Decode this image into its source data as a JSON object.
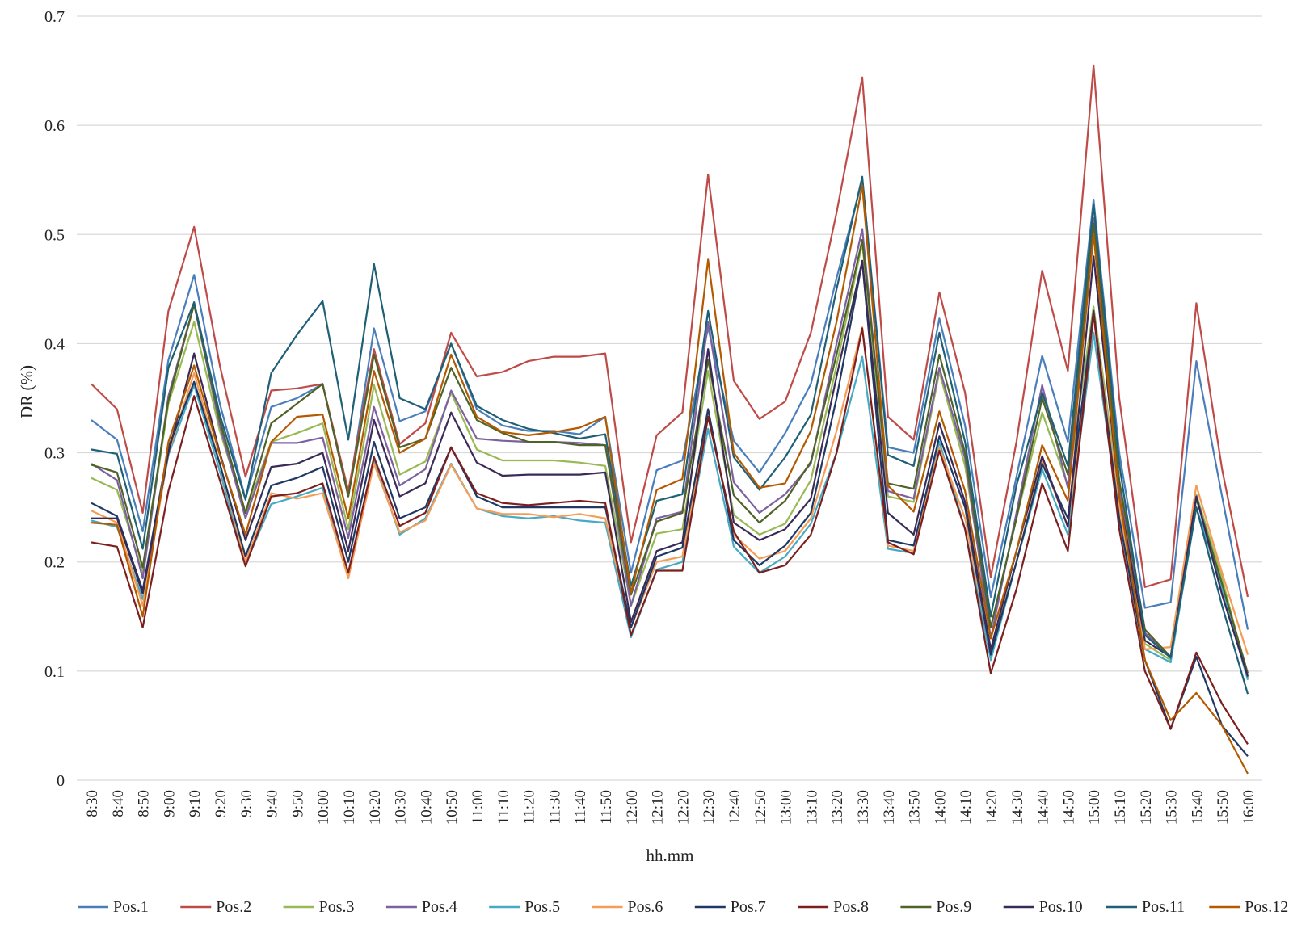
{
  "chart_data": {
    "type": "line",
    "xlabel": "hh.mm",
    "ylabel": "DR (%)",
    "ylim": [
      0,
      0.7
    ],
    "yticks": [
      "0",
      "0.1",
      "0.2",
      "0.3",
      "0.4",
      "0.5",
      "0.6",
      "0.7"
    ],
    "grid": "horizontal",
    "legend_position": "bottom",
    "x": [
      "8:30",
      "8:40",
      "8:50",
      "9:00",
      "9:10",
      "9:20",
      "9:30",
      "9:40",
      "9:50",
      "10:00",
      "10:10",
      "10:20",
      "10:30",
      "10:40",
      "10:50",
      "11:00",
      "11:10",
      "11:20",
      "11:30",
      "11:40",
      "11:50",
      "12:00",
      "12:10",
      "12:20",
      "12:30",
      "12:40",
      "12:50",
      "13:00",
      "13:10",
      "13:20",
      "13:30",
      "13:40",
      "13:50",
      "14:00",
      "14:10",
      "14:20",
      "14:30",
      "14:40",
      "14:50",
      "15:00",
      "15:10",
      "15:20",
      "15:30",
      "15:40",
      "15:50",
      "16:00"
    ],
    "series": [
      {
        "name": "Pos.1",
        "color": "#4a7ebb",
        "values": [
          0.33,
          0.312,
          0.228,
          0.385,
          0.463,
          0.345,
          0.258,
          0.342,
          0.35,
          0.363,
          0.26,
          0.414,
          0.329,
          0.338,
          0.4,
          0.34,
          0.325,
          0.32,
          0.32,
          0.317,
          0.333,
          0.19,
          0.284,
          0.293,
          0.415,
          0.311,
          0.282,
          0.318,
          0.363,
          0.46,
          0.55,
          0.305,
          0.3,
          0.423,
          0.325,
          0.168,
          0.278,
          0.389,
          0.31,
          0.532,
          0.3,
          0.158,
          0.163,
          0.384,
          0.26,
          0.138
        ]
      },
      {
        "name": "Pos.2",
        "color": "#be4b48",
        "values": [
          0.363,
          0.34,
          0.245,
          0.43,
          0.507,
          0.38,
          0.278,
          0.357,
          0.359,
          0.363,
          0.265,
          0.395,
          0.308,
          0.327,
          0.41,
          0.37,
          0.374,
          0.384,
          0.388,
          0.388,
          0.391,
          0.218,
          0.316,
          0.337,
          0.555,
          0.366,
          0.331,
          0.347,
          0.41,
          0.52,
          0.644,
          0.333,
          0.312,
          0.447,
          0.355,
          0.186,
          0.31,
          0.467,
          0.375,
          0.655,
          0.35,
          0.177,
          0.184,
          0.437,
          0.285,
          0.168
        ]
      },
      {
        "name": "Pos.3",
        "color": "#98b954",
        "values": [
          0.277,
          0.266,
          0.19,
          0.345,
          0.42,
          0.32,
          0.245,
          0.31,
          0.318,
          0.327,
          0.23,
          0.362,
          0.28,
          0.292,
          0.355,
          0.303,
          0.293,
          0.293,
          0.293,
          0.291,
          0.288,
          0.16,
          0.226,
          0.23,
          0.375,
          0.243,
          0.225,
          0.235,
          0.275,
          0.38,
          0.492,
          0.26,
          0.255,
          0.374,
          0.288,
          0.14,
          0.24,
          0.337,
          0.27,
          0.434,
          0.26,
          0.125,
          0.11,
          0.262,
          0.185,
          0.095
        ]
      },
      {
        "name": "Pos.4",
        "color": "#7d60a0",
        "values": [
          0.29,
          0.275,
          0.185,
          0.352,
          0.436,
          0.325,
          0.24,
          0.309,
          0.309,
          0.314,
          0.222,
          0.342,
          0.27,
          0.285,
          0.357,
          0.313,
          0.311,
          0.31,
          0.31,
          0.309,
          0.307,
          0.16,
          0.24,
          0.246,
          0.42,
          0.273,
          0.245,
          0.262,
          0.29,
          0.4,
          0.505,
          0.265,
          0.258,
          0.378,
          0.295,
          0.13,
          0.245,
          0.362,
          0.268,
          0.515,
          0.27,
          0.135,
          0.113,
          0.26,
          0.178,
          0.093
        ]
      },
      {
        "name": "Pos.5",
        "color": "#46aac5",
        "values": [
          0.238,
          0.232,
          0.166,
          0.298,
          0.362,
          0.283,
          0.198,
          0.253,
          0.26,
          0.268,
          0.19,
          0.293,
          0.225,
          0.24,
          0.29,
          0.249,
          0.242,
          0.24,
          0.242,
          0.238,
          0.236,
          0.131,
          0.193,
          0.2,
          0.322,
          0.214,
          0.19,
          0.205,
          0.235,
          0.3,
          0.388,
          0.212,
          0.208,
          0.31,
          0.23,
          0.11,
          0.2,
          0.285,
          0.225,
          0.41,
          0.24,
          0.12,
          0.108,
          0.25,
          0.175,
          0.092
        ]
      },
      {
        "name": "Pos.6",
        "color": "#f59d56",
        "values": [
          0.247,
          0.236,
          0.16,
          0.3,
          0.373,
          0.29,
          0.2,
          0.263,
          0.258,
          0.263,
          0.185,
          0.29,
          0.227,
          0.238,
          0.289,
          0.249,
          0.244,
          0.244,
          0.241,
          0.244,
          0.24,
          0.14,
          0.2,
          0.205,
          0.335,
          0.225,
          0.203,
          0.21,
          0.24,
          0.32,
          0.415,
          0.215,
          0.21,
          0.305,
          0.24,
          0.118,
          0.2,
          0.293,
          0.233,
          0.43,
          0.25,
          0.12,
          0.122,
          0.27,
          0.19,
          0.115
        ]
      },
      {
        "name": "Pos.7",
        "color": "#1f3864",
        "values": [
          0.254,
          0.242,
          0.174,
          0.305,
          0.365,
          0.29,
          0.205,
          0.27,
          0.277,
          0.287,
          0.2,
          0.31,
          0.24,
          0.25,
          0.305,
          0.26,
          0.25,
          0.25,
          0.25,
          0.25,
          0.25,
          0.14,
          0.205,
          0.213,
          0.34,
          0.22,
          0.197,
          0.215,
          0.245,
          0.35,
          0.475,
          0.22,
          0.215,
          0.315,
          0.25,
          0.115,
          0.2,
          0.29,
          0.24,
          0.43,
          0.24,
          0.11,
          0.047,
          0.113,
          0.05,
          0.022
        ]
      },
      {
        "name": "Pos.8",
        "color": "#7b1f1f",
        "values": [
          0.218,
          0.214,
          0.14,
          0.265,
          0.352,
          0.275,
          0.196,
          0.26,
          0.263,
          0.272,
          0.19,
          0.296,
          0.233,
          0.245,
          0.305,
          0.263,
          0.254,
          0.252,
          0.254,
          0.256,
          0.254,
          0.133,
          0.192,
          0.192,
          0.333,
          0.228,
          0.19,
          0.197,
          0.225,
          0.3,
          0.414,
          0.218,
          0.207,
          0.302,
          0.23,
          0.098,
          0.175,
          0.272,
          0.21,
          0.427,
          0.23,
          0.1,
          0.047,
          0.117,
          0.07,
          0.033
        ]
      },
      {
        "name": "Pos.9",
        "color": "#4f6228",
        "values": [
          0.289,
          0.282,
          0.195,
          0.348,
          0.436,
          0.33,
          0.245,
          0.327,
          0.345,
          0.363,
          0.26,
          0.39,
          0.305,
          0.313,
          0.378,
          0.33,
          0.318,
          0.31,
          0.31,
          0.307,
          0.307,
          0.17,
          0.237,
          0.245,
          0.385,
          0.261,
          0.236,
          0.256,
          0.292,
          0.39,
          0.495,
          0.272,
          0.267,
          0.39,
          0.3,
          0.14,
          0.24,
          0.35,
          0.28,
          0.51,
          0.275,
          0.138,
          0.113,
          0.258,
          0.18,
          0.098
        ]
      },
      {
        "name": "Pos.10",
        "color": "#3a2a58",
        "values": [
          0.24,
          0.24,
          0.171,
          0.3,
          0.391,
          0.3,
          0.22,
          0.287,
          0.29,
          0.3,
          0.21,
          0.33,
          0.26,
          0.272,
          0.337,
          0.291,
          0.279,
          0.28,
          0.28,
          0.28,
          0.282,
          0.145,
          0.21,
          0.218,
          0.395,
          0.236,
          0.22,
          0.23,
          0.258,
          0.37,
          0.476,
          0.245,
          0.225,
          0.327,
          0.255,
          0.12,
          0.21,
          0.297,
          0.232,
          0.48,
          0.26,
          0.128,
          0.113,
          0.26,
          0.17,
          0.095
        ]
      },
      {
        "name": "Pos.11",
        "color": "#1f6076",
        "values": [
          0.303,
          0.299,
          0.212,
          0.378,
          0.438,
          0.335,
          0.257,
          0.373,
          0.408,
          0.439,
          0.312,
          0.473,
          0.35,
          0.34,
          0.4,
          0.343,
          0.33,
          0.322,
          0.318,
          0.313,
          0.317,
          0.178,
          0.256,
          0.262,
          0.43,
          0.296,
          0.266,
          0.296,
          0.335,
          0.45,
          0.553,
          0.298,
          0.288,
          0.41,
          0.31,
          0.15,
          0.27,
          0.355,
          0.288,
          0.527,
          0.29,
          0.133,
          0.112,
          0.25,
          0.16,
          0.079
        ]
      },
      {
        "name": "Pos.12",
        "color": "#b35a00",
        "values": [
          0.236,
          0.234,
          0.15,
          0.31,
          0.38,
          0.298,
          0.225,
          0.31,
          0.333,
          0.335,
          0.24,
          0.375,
          0.3,
          0.313,
          0.39,
          0.333,
          0.319,
          0.316,
          0.319,
          0.323,
          0.333,
          0.172,
          0.266,
          0.276,
          0.477,
          0.3,
          0.268,
          0.272,
          0.32,
          0.42,
          0.545,
          0.27,
          0.246,
          0.338,
          0.265,
          0.13,
          0.21,
          0.307,
          0.256,
          0.5,
          0.26,
          0.11,
          0.055,
          0.08,
          0.05,
          0.006
        ]
      }
    ]
  }
}
